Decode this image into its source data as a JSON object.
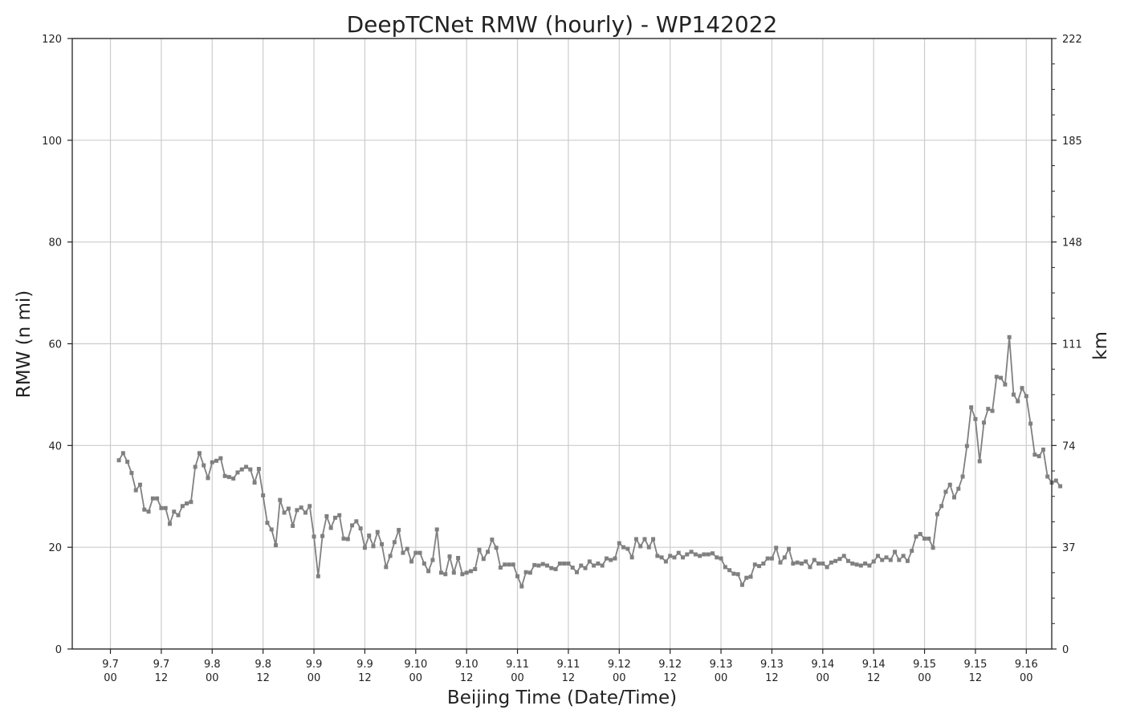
{
  "chart_data": {
    "type": "line",
    "title": "DeepTCNet RMW (hourly) - WP142022",
    "xlabel": "Beijing Time (Date/Time)",
    "ylabel": "RMW (n mi)",
    "y2label": "km",
    "ylim": [
      0,
      120
    ],
    "yticks": [
      0,
      20,
      40,
      60,
      80,
      100,
      120
    ],
    "y2ticks": [
      {
        "value": 0,
        "label": "0"
      },
      {
        "value": 20,
        "label": "37"
      },
      {
        "value": 40,
        "label": "74"
      },
      {
        "value": 60,
        "label": "111"
      },
      {
        "value": 80,
        "label": "148"
      },
      {
        "value": 100,
        "label": "185"
      },
      {
        "value": 120,
        "label": "222"
      }
    ],
    "y2_minor_ticks": [
      5,
      10,
      15,
      25,
      30,
      35,
      45,
      50,
      55,
      65,
      70,
      75,
      85,
      90,
      95,
      105,
      110,
      115
    ],
    "x_unit": "hours from 9.7 00",
    "xlim": [
      -9,
      222
    ],
    "xticks": [
      {
        "hour": 0,
        "date": "9.7",
        "time": "00"
      },
      {
        "hour": 12,
        "date": "9.7",
        "time": "12"
      },
      {
        "hour": 24,
        "date": "9.8",
        "time": "00"
      },
      {
        "hour": 36,
        "date": "9.8",
        "time": "12"
      },
      {
        "hour": 48,
        "date": "9.9",
        "time": "00"
      },
      {
        "hour": 60,
        "date": "9.9",
        "time": "12"
      },
      {
        "hour": 72,
        "date": "9.10",
        "time": "00"
      },
      {
        "hour": 84,
        "date": "9.10",
        "time": "12"
      },
      {
        "hour": 96,
        "date": "9.11",
        "time": "00"
      },
      {
        "hour": 108,
        "date": "9.11",
        "time": "12"
      },
      {
        "hour": 120,
        "date": "9.12",
        "time": "00"
      },
      {
        "hour": 132,
        "date": "9.12",
        "time": "12"
      },
      {
        "hour": 144,
        "date": "9.13",
        "time": "00"
      },
      {
        "hour": 156,
        "date": "9.13",
        "time": "12"
      },
      {
        "hour": 168,
        "date": "9.14",
        "time": "00"
      },
      {
        "hour": 180,
        "date": "9.14",
        "time": "12"
      },
      {
        "hour": 192,
        "date": "9.15",
        "time": "00"
      },
      {
        "hour": 204,
        "date": "9.15",
        "time": "12"
      },
      {
        "hour": 216,
        "date": "9.16",
        "time": "00"
      }
    ],
    "grid": true,
    "series": [
      {
        "color": "#808080",
        "x_start": 2,
        "x_step": 1,
        "values": [
          37.1,
          38.5,
          36.8,
          34.6,
          31.2,
          32.3,
          27.4,
          27.0,
          29.6,
          29.6,
          27.7,
          27.7,
          24.6,
          27.0,
          26.3,
          28.1,
          28.6,
          28.9,
          35.8,
          38.5,
          36.1,
          33.6,
          36.7,
          37.0,
          37.5,
          34.0,
          33.8,
          33.5,
          34.7,
          35.3,
          35.8,
          35.3,
          32.7,
          35.4,
          30.2,
          24.8,
          23.5,
          20.4,
          29.3,
          26.8,
          27.6,
          24.2,
          27.3,
          27.8,
          26.8,
          28.1,
          22.1,
          14.3,
          22.2,
          26.1,
          23.8,
          25.8,
          26.3,
          21.7,
          21.6,
          24.3,
          25.1,
          23.7,
          19.9,
          22.3,
          20.2,
          23.0,
          20.6,
          16.1,
          18.3,
          21.0,
          23.4,
          18.9,
          19.7,
          17.2,
          18.9,
          18.9,
          16.8,
          15.3,
          17.5,
          23.5,
          15.0,
          14.7,
          18.2,
          15.0,
          17.9,
          14.7,
          15.0,
          15.3,
          15.7,
          19.5,
          17.7,
          19.1,
          21.5,
          19.9,
          16.0,
          16.6,
          16.6,
          16.6,
          14.3,
          12.3,
          15.1,
          15.0,
          16.5,
          16.4,
          16.7,
          16.4,
          15.9,
          15.7,
          16.8,
          16.8,
          16.8,
          16.0,
          15.1,
          16.4,
          15.9,
          17.2,
          16.4,
          16.8,
          16.4,
          17.8,
          17.5,
          17.8,
          20.8,
          20.0,
          19.7,
          18.0,
          21.6,
          20.2,
          21.6,
          20.0,
          21.6,
          18.3,
          18.0,
          17.2,
          18.3,
          18.0,
          18.9,
          18.0,
          18.6,
          19.1,
          18.6,
          18.3,
          18.6,
          18.6,
          18.8,
          18.0,
          17.8,
          16.1,
          15.5,
          14.8,
          14.7,
          12.6,
          14.0,
          14.2,
          16.6,
          16.3,
          16.8,
          17.8,
          17.8,
          19.9,
          17.0,
          18.0,
          19.7,
          16.8,
          17.0,
          16.8,
          17.2,
          16.1,
          17.5,
          16.8,
          16.8,
          16.1,
          17.0,
          17.3,
          17.7,
          18.3,
          17.3,
          16.8,
          16.6,
          16.4,
          16.8,
          16.4,
          17.2,
          18.3,
          17.5,
          18.0,
          17.5,
          19.1,
          17.5,
          18.3,
          17.3,
          19.3,
          22.1,
          22.6,
          21.7,
          21.7,
          19.9,
          26.5,
          28.1,
          30.9,
          32.3,
          29.8,
          31.5,
          33.9,
          39.9,
          47.5,
          45.2,
          36.9,
          44.5,
          47.2,
          46.8,
          53.5,
          53.3,
          52.0,
          61.3,
          50.0,
          48.7,
          51.3,
          49.7,
          44.3,
          38.2,
          37.9,
          39.2,
          33.9,
          32.7,
          33.1,
          32.0
        ]
      }
    ]
  }
}
